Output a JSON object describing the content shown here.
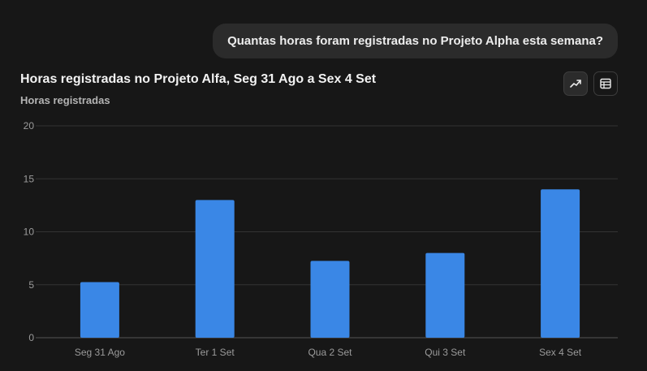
{
  "conversation": {
    "user_message": "Quantas horas foram registradas no Projeto Alpha esta semana?"
  },
  "toolbar": {
    "buttons": [
      {
        "icon": "trend-line-icon",
        "active": true
      },
      {
        "icon": "table-icon",
        "active": false
      }
    ]
  },
  "colors": {
    "bar": "#3a87e6",
    "grid": "#333333",
    "axis": "#555555",
    "tick": "#9b9b9b"
  },
  "chart_data": {
    "type": "bar",
    "title": "Horas registradas no Projeto Alfa, Seg 31 Ago a Sex 4 Set",
    "subtitle": "Horas registradas",
    "categories": [
      "Seg 31 Ago",
      "Ter 1 Set",
      "Qua 2 Set",
      "Qui 3 Set",
      "Sex 4 Set"
    ],
    "values": [
      5.25,
      13,
      7.25,
      8,
      14
    ],
    "ylim": [
      0,
      20
    ],
    "yticks": [
      0,
      5,
      10,
      15,
      20
    ],
    "grid": true,
    "legend": "none"
  }
}
